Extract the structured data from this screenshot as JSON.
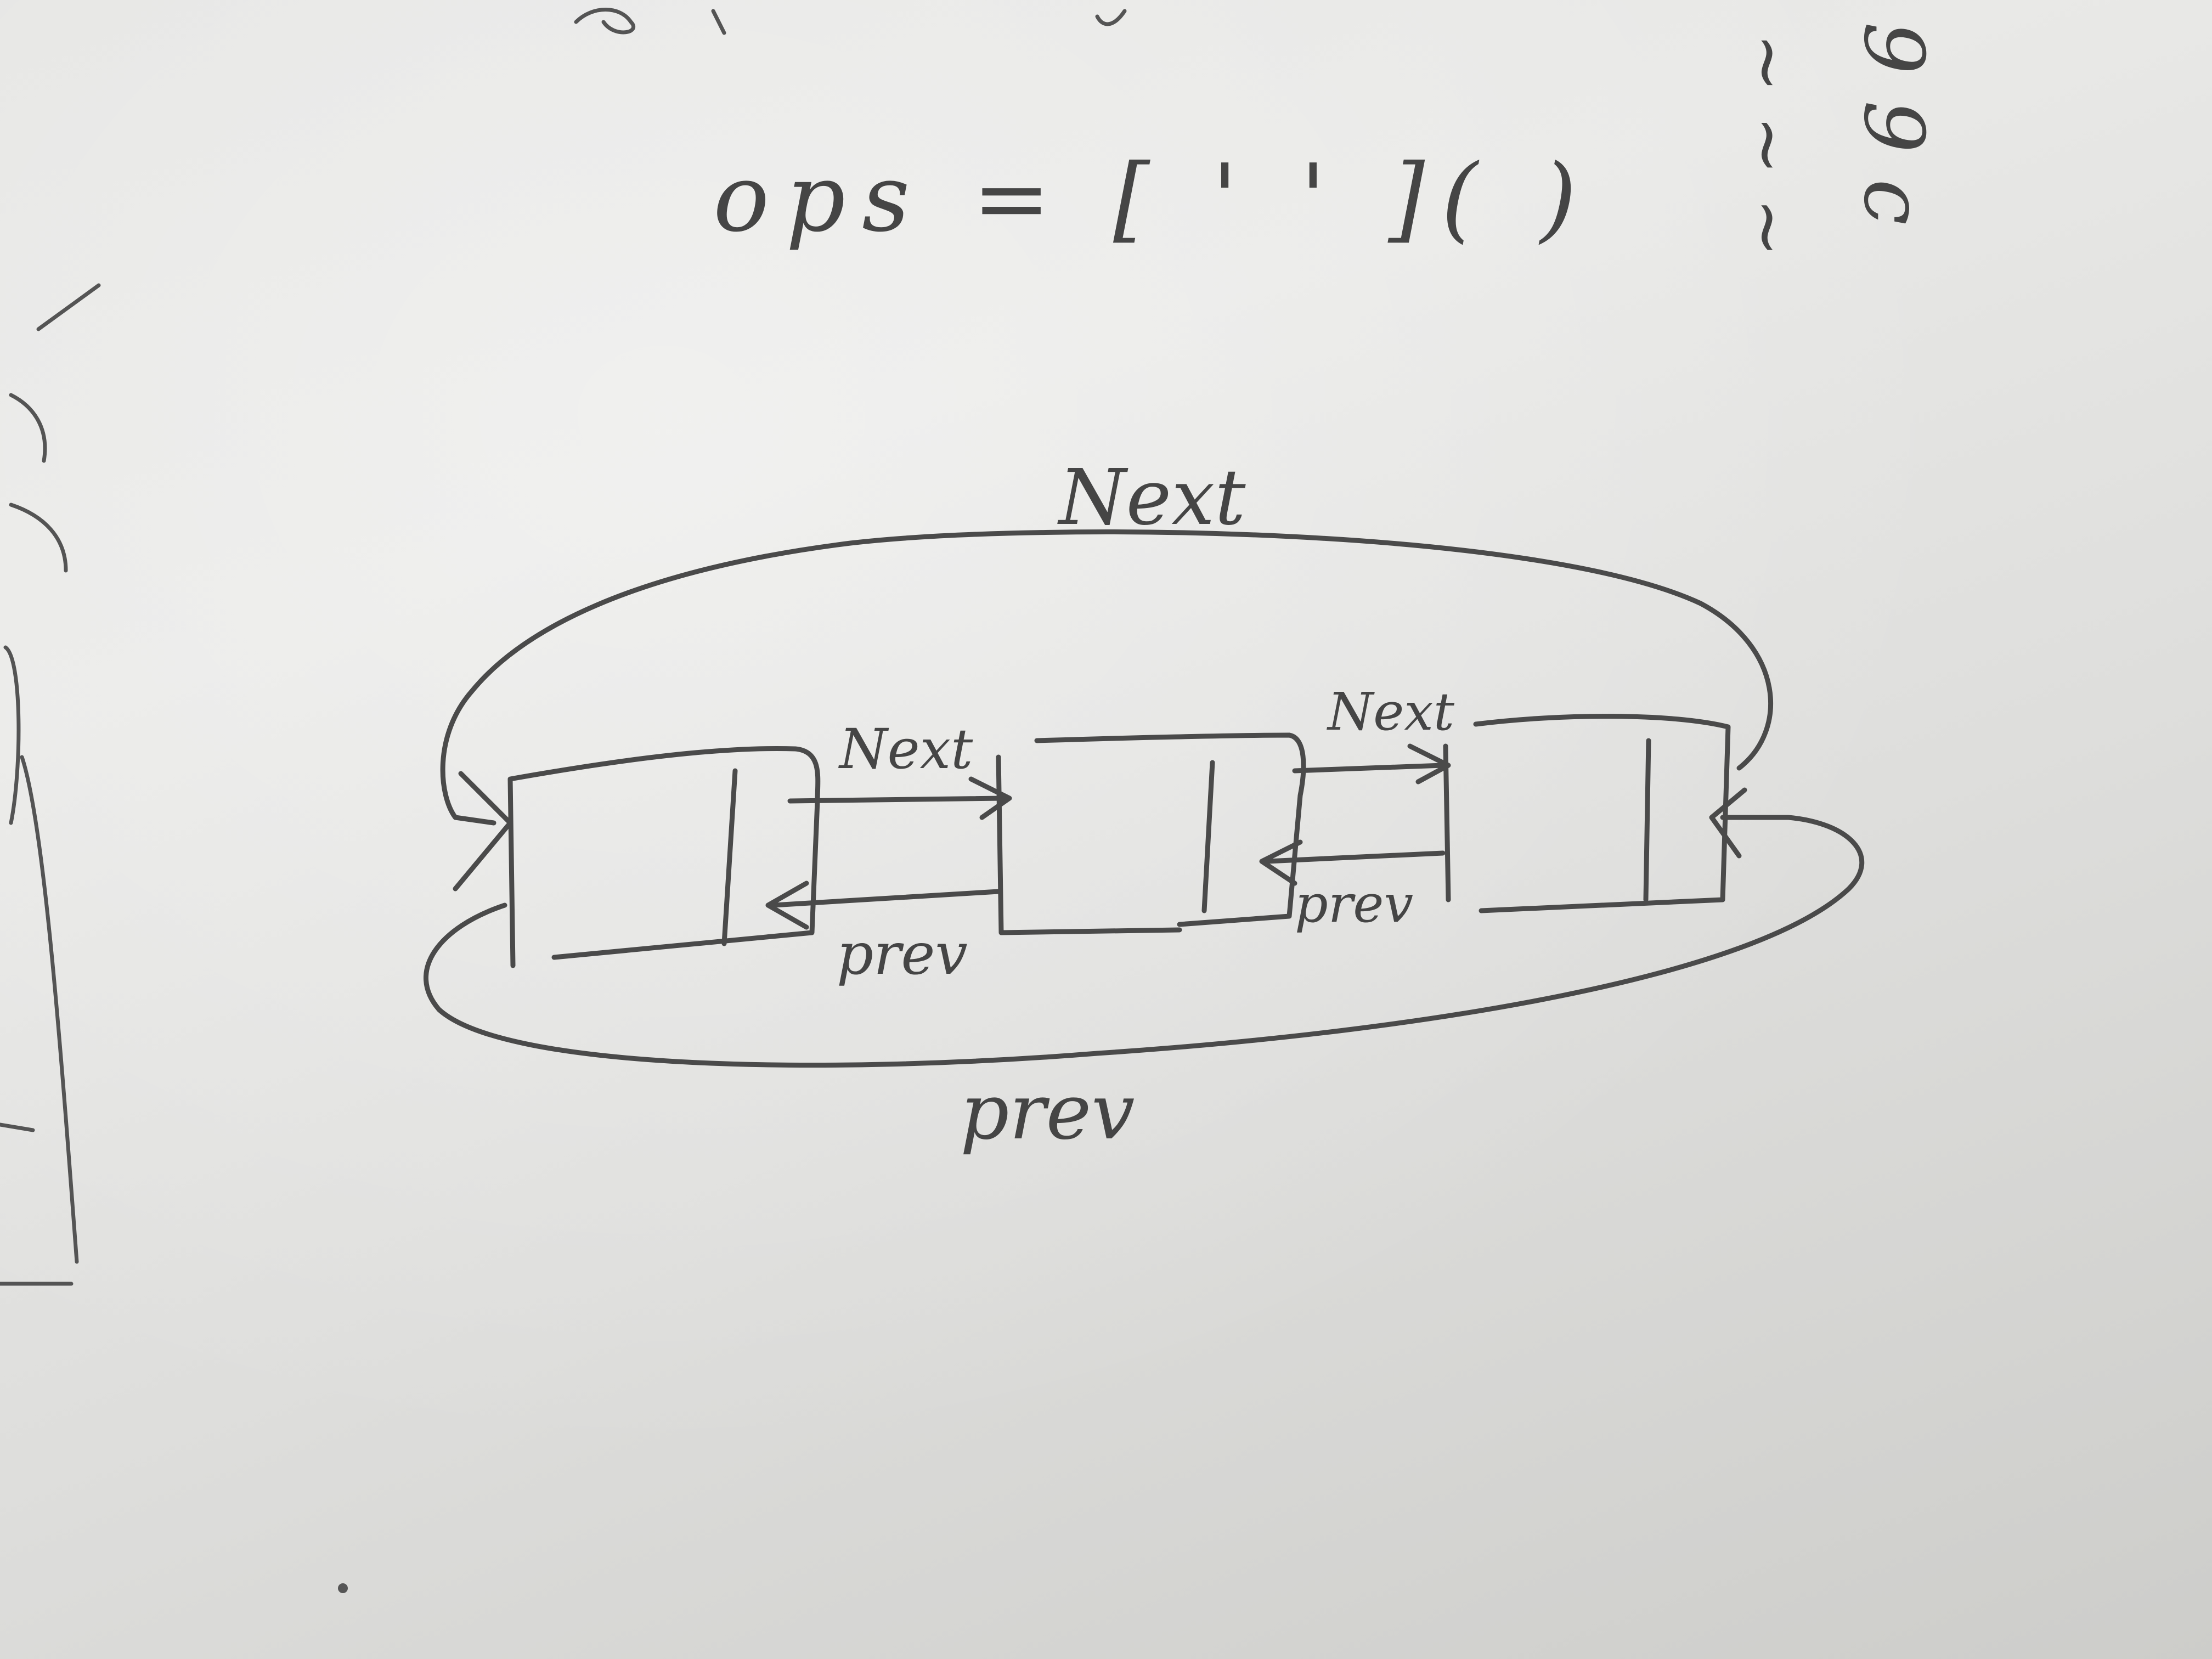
{
  "formula": {
    "text": "ops = [ ' ' ]( )"
  },
  "labels": {
    "outer_next": "Next",
    "outer_prev": "prev",
    "link_next_1": "Next",
    "link_next_2": "Next",
    "link_prev_1": "prev",
    "link_prev_2": "prev"
  },
  "margin_notes": {
    "col_a": "~ ~ ~",
    "col_b": "9 9 c"
  },
  "nodes": [
    {
      "label": ""
    },
    {
      "label": ""
    },
    {
      "label": ""
    }
  ],
  "colors": {
    "ink": "#4a4a4a",
    "paper": "#e6e6e4"
  }
}
